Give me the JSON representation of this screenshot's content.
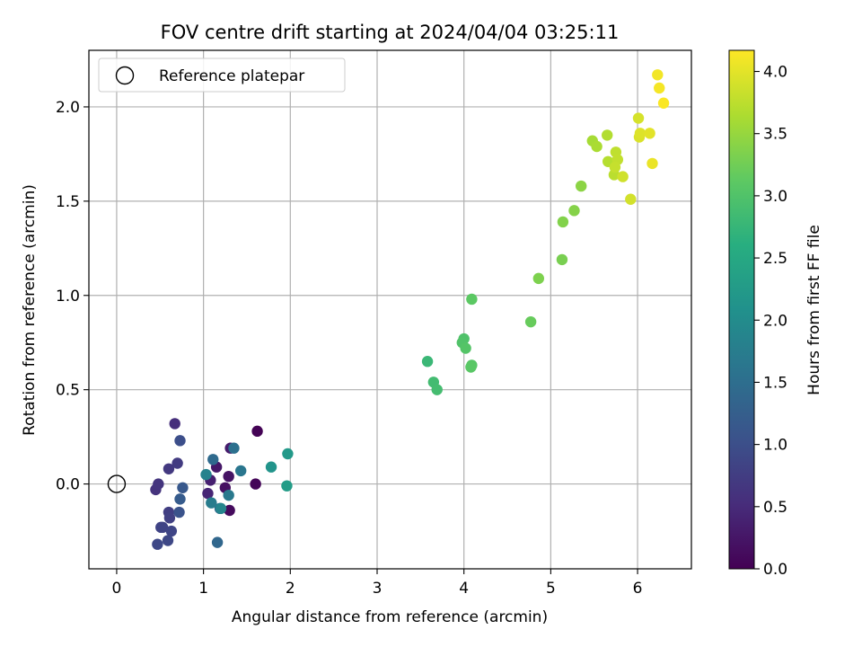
{
  "chart_data": {
    "type": "scatter",
    "title": "FOV centre drift starting at 2024/04/04 03:25:11",
    "xlabel": "Angular distance from reference (arcmin)",
    "ylabel": "Rotation from reference (arcmin)",
    "xlim": [
      -0.32,
      6.62
    ],
    "ylim": [
      -0.45,
      2.3
    ],
    "xticks": [
      0,
      1,
      2,
      3,
      4,
      5,
      6
    ],
    "xtick_labels": [
      "0",
      "1",
      "2",
      "3",
      "4",
      "5",
      "6"
    ],
    "yticks": [
      0.0,
      0.5,
      1.0,
      1.5,
      2.0
    ],
    "ytick_labels": [
      "0.0",
      "0.5",
      "1.0",
      "1.5",
      "2.0"
    ],
    "grid": true,
    "legend": {
      "placement": "top-left",
      "label": "Reference platepar"
    },
    "reference_point": {
      "x": 0,
      "y": 0
    },
    "colorbar": {
      "label": "Hours from first FF file",
      "colormap": "viridis",
      "range": [
        0.0,
        4.17
      ],
      "ticks": [
        0.0,
        0.5,
        1.0,
        1.5,
        2.0,
        2.5,
        3.0,
        3.5,
        4.0
      ],
      "tick_labels": [
        "0.0",
        "0.5",
        "1.0",
        "1.5",
        "2.0",
        "2.5",
        "3.0",
        "3.5",
        "4.0"
      ]
    },
    "points": [
      {
        "x": 1.62,
        "y": 0.28,
        "t": 0.02
      },
      {
        "x": 1.6,
        "y": 0.0,
        "t": 0.05
      },
      {
        "x": 1.3,
        "y": -0.14,
        "t": 0.12
      },
      {
        "x": 1.25,
        "y": -0.02,
        "t": 0.18
      },
      {
        "x": 1.29,
        "y": 0.04,
        "t": 0.22
      },
      {
        "x": 1.15,
        "y": 0.09,
        "t": 0.28
      },
      {
        "x": 1.31,
        "y": 0.19,
        "t": 0.33
      },
      {
        "x": 1.08,
        "y": 0.02,
        "t": 0.38
      },
      {
        "x": 1.05,
        "y": -0.05,
        "t": 0.45
      },
      {
        "x": 0.67,
        "y": 0.32,
        "t": 0.55
      },
      {
        "x": 0.45,
        "y": -0.03,
        "t": 0.62
      },
      {
        "x": 0.48,
        "y": 0.0,
        "t": 0.65
      },
      {
        "x": 0.6,
        "y": 0.08,
        "t": 0.7
      },
      {
        "x": 0.7,
        "y": 0.11,
        "t": 0.73
      },
      {
        "x": 0.6,
        "y": -0.15,
        "t": 0.78
      },
      {
        "x": 0.61,
        "y": -0.18,
        "t": 0.8
      },
      {
        "x": 0.53,
        "y": -0.23,
        "t": 0.83
      },
      {
        "x": 0.51,
        "y": -0.23,
        "t": 0.85
      },
      {
        "x": 0.63,
        "y": -0.25,
        "t": 0.88
      },
      {
        "x": 0.59,
        "y": -0.3,
        "t": 0.9
      },
      {
        "x": 0.47,
        "y": -0.32,
        "t": 0.92
      },
      {
        "x": 0.73,
        "y": 0.23,
        "t": 1.0
      },
      {
        "x": 0.72,
        "y": -0.15,
        "t": 1.08
      },
      {
        "x": 0.76,
        "y": -0.02,
        "t": 1.15
      },
      {
        "x": 0.73,
        "y": -0.08,
        "t": 1.2
      },
      {
        "x": 1.19,
        "y": -0.13,
        "t": 1.35
      },
      {
        "x": 1.16,
        "y": -0.31,
        "t": 1.4
      },
      {
        "x": 1.11,
        "y": 0.13,
        "t": 1.45
      },
      {
        "x": 1.35,
        "y": 0.19,
        "t": 1.55
      },
      {
        "x": 1.43,
        "y": 0.07,
        "t": 1.65
      },
      {
        "x": 1.29,
        "y": -0.06,
        "t": 1.7
      },
      {
        "x": 1.09,
        "y": -0.1,
        "t": 1.75
      },
      {
        "x": 1.03,
        "y": 0.05,
        "t": 1.85
      },
      {
        "x": 1.2,
        "y": -0.13,
        "t": 1.9
      },
      {
        "x": 1.78,
        "y": 0.09,
        "t": 2.15
      },
      {
        "x": 1.97,
        "y": 0.16,
        "t": 2.25
      },
      {
        "x": 1.96,
        "y": -0.01,
        "t": 2.3
      },
      {
        "x": 3.58,
        "y": 0.65,
        "t": 2.8
      },
      {
        "x": 3.65,
        "y": 0.54,
        "t": 2.88
      },
      {
        "x": 3.69,
        "y": 0.5,
        "t": 2.9
      },
      {
        "x": 4.0,
        "y": 0.77,
        "t": 3.0
      },
      {
        "x": 3.98,
        "y": 0.75,
        "t": 3.02
      },
      {
        "x": 4.02,
        "y": 0.72,
        "t": 3.05
      },
      {
        "x": 4.09,
        "y": 0.63,
        "t": 3.08
      },
      {
        "x": 4.08,
        "y": 0.62,
        "t": 3.1
      },
      {
        "x": 4.09,
        "y": 0.98,
        "t": 3.12
      },
      {
        "x": 4.77,
        "y": 0.86,
        "t": 3.2
      },
      {
        "x": 4.86,
        "y": 1.09,
        "t": 3.35
      },
      {
        "x": 5.13,
        "y": 1.19,
        "t": 3.32
      },
      {
        "x": 5.14,
        "y": 1.39,
        "t": 3.38
      },
      {
        "x": 5.27,
        "y": 1.45,
        "t": 3.4
      },
      {
        "x": 5.35,
        "y": 1.58,
        "t": 3.45
      },
      {
        "x": 5.48,
        "y": 1.82,
        "t": 3.62
      },
      {
        "x": 5.53,
        "y": 1.79,
        "t": 3.65
      },
      {
        "x": 5.65,
        "y": 1.85,
        "t": 3.7
      },
      {
        "x": 5.66,
        "y": 1.71,
        "t": 3.72
      },
      {
        "x": 5.73,
        "y": 1.64,
        "t": 3.75
      },
      {
        "x": 5.75,
        "y": 1.76,
        "t": 3.78
      },
      {
        "x": 5.77,
        "y": 1.72,
        "t": 3.8
      },
      {
        "x": 5.74,
        "y": 1.68,
        "t": 3.82
      },
      {
        "x": 5.83,
        "y": 1.63,
        "t": 3.88
      },
      {
        "x": 5.92,
        "y": 1.51,
        "t": 3.9
      },
      {
        "x": 6.01,
        "y": 1.94,
        "t": 3.92
      },
      {
        "x": 6.02,
        "y": 1.84,
        "t": 3.95
      },
      {
        "x": 6.03,
        "y": 1.86,
        "t": 3.97
      },
      {
        "x": 6.14,
        "y": 1.86,
        "t": 4.0
      },
      {
        "x": 6.17,
        "y": 1.7,
        "t": 4.05
      },
      {
        "x": 6.23,
        "y": 2.17,
        "t": 4.1
      },
      {
        "x": 6.25,
        "y": 2.1,
        "t": 4.12
      },
      {
        "x": 6.3,
        "y": 2.02,
        "t": 4.15
      }
    ]
  }
}
